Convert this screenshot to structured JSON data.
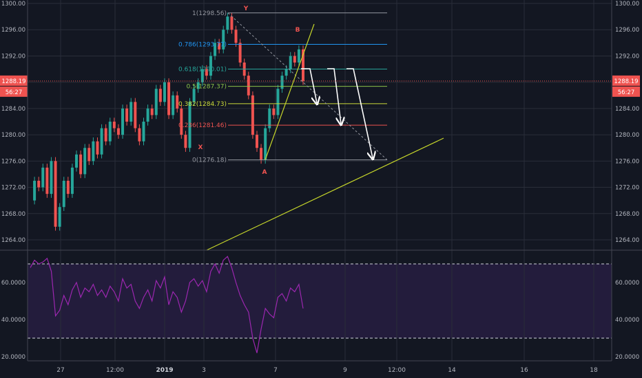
{
  "price_axis": {
    "ticks": [
      "1300.00",
      "1296.00",
      "1292.00",
      "1288.00",
      "1284.00",
      "1280.00",
      "1276.00",
      "1272.00",
      "1268.00",
      "1264.00"
    ],
    "tick_values": [
      1300,
      1296,
      1292,
      1288,
      1284,
      1280,
      1276,
      1272,
      1268,
      1264
    ],
    "current_price": "1288.19",
    "countdown": "56:27"
  },
  "rsi_axis": {
    "ticks": [
      "60.0000",
      "40.0000",
      "20.0000"
    ],
    "tick_values": [
      60,
      40,
      20
    ],
    "upper_band": 70,
    "lower_band": 30
  },
  "time_axis": {
    "labels": [
      "27",
      "12:00",
      "2019",
      "3",
      "7",
      "9",
      "12:00",
      "14",
      "16",
      "18"
    ],
    "bold": [
      false,
      false,
      true,
      false,
      false,
      false,
      false,
      false,
      false,
      false
    ]
  },
  "fib_levels": [
    {
      "ratio": "1",
      "value": 1298.56,
      "label": "1(1298.56)",
      "color": "#9598a1"
    },
    {
      "ratio": "0.786",
      "value": 1293.77,
      "label": "0.786(1293.77)",
      "color": "#2196f3"
    },
    {
      "ratio": "0.618",
      "value": 1290.01,
      "label": "0.618(1290.01)",
      "color": "#26a69a"
    },
    {
      "ratio": "0.5",
      "value": 1287.37,
      "label": "0.5(1287.37)",
      "color": "#8bc34a"
    },
    {
      "ratio": "0.382",
      "value": 1284.73,
      "label": "0.382(1284.73)",
      "color": "#cddc39"
    },
    {
      "ratio": "0.236",
      "value": 1281.46,
      "label": "0.236(1281.46)",
      "color": "#ef5350"
    },
    {
      "ratio": "0",
      "value": 1276.18,
      "label": "0(1276.18)",
      "color": "#9598a1"
    }
  ],
  "wave_labels": [
    {
      "text": "Y",
      "color": "#ef5350"
    },
    {
      "text": "B",
      "color": "#ef5350"
    },
    {
      "text": "X",
      "color": "#ef5350"
    },
    {
      "text": "A",
      "color": "#ef5350"
    }
  ],
  "colors": {
    "background": "#131722",
    "grid": "#2a2e39",
    "up": "#26a69a",
    "down": "#ef5350",
    "rsi_line": "#9c27b0",
    "rsi_band": "#2a1f45",
    "trendline": "#c6d62a",
    "arrows": "#ffffff",
    "price_tag": "#ef5350"
  },
  "chart_data": {
    "type": "candlestick",
    "title": "",
    "ylim": [
      1262,
      1301
    ],
    "rsi_ylim": [
      20,
      75
    ],
    "price_path": [
      1270,
      1273,
      1272,
      1275,
      1271,
      1276,
      1266,
      1269,
      1273,
      1271,
      1275,
      1277,
      1274,
      1278,
      1276,
      1279,
      1277,
      1281,
      1279,
      1282,
      1281,
      1280,
      1284,
      1282,
      1285,
      1281,
      1279,
      1282,
      1284,
      1283,
      1287,
      1285,
      1288,
      1283,
      1286,
      1284,
      1280,
      1278,
      1285,
      1287,
      1288,
      1290,
      1289,
      1292,
      1294,
      1293,
      1296,
      1298,
      1296,
      1294,
      1291,
      1289,
      1286,
      1280,
      1278,
      1276.2,
      1281,
      1284,
      1283,
      1287,
      1289,
      1290,
      1292,
      1291,
      1293,
      1288.2
    ],
    "rsi_values": [
      68,
      72,
      70,
      71,
      73,
      66,
      42,
      45,
      53,
      48,
      56,
      60,
      52,
      57,
      55,
      59,
      53,
      56,
      52,
      58,
      55,
      50,
      62,
      57,
      59,
      50,
      46,
      52,
      56,
      50,
      61,
      57,
      63,
      48,
      55,
      52,
      44,
      50,
      60,
      62,
      58,
      61,
      55,
      66,
      70,
      65,
      72,
      74,
      68,
      60,
      53,
      48,
      44,
      30,
      22,
      35,
      46,
      43,
      41,
      52,
      54,
      50,
      57,
      55,
      59,
      46
    ]
  }
}
